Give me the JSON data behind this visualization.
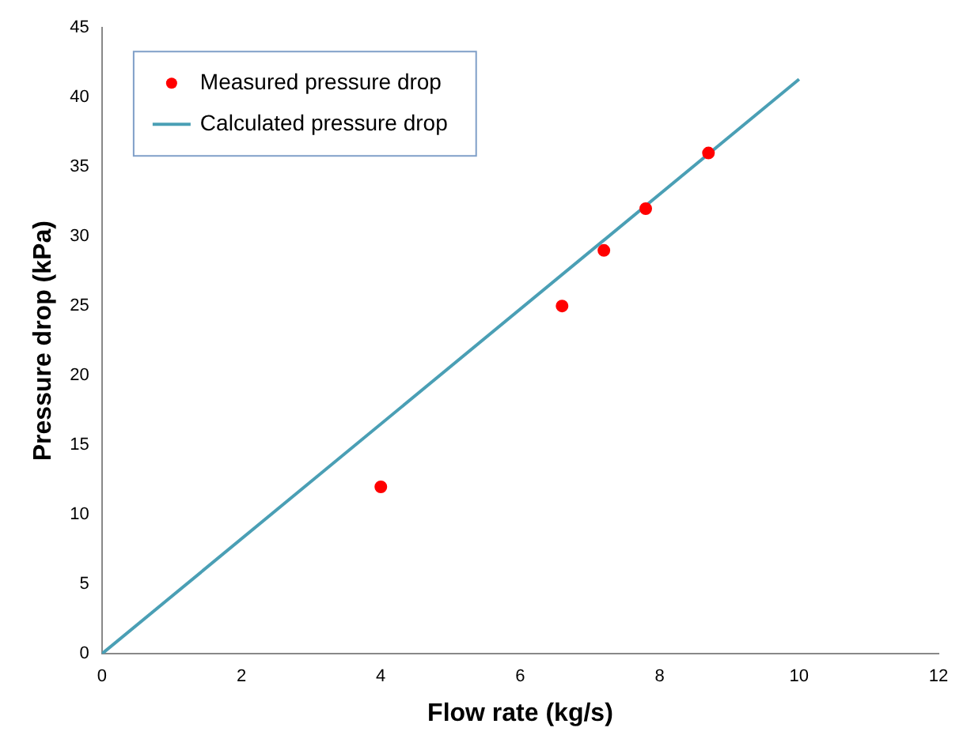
{
  "chart_data": {
    "type": "scatter",
    "xlabel": "Flow rate (kg/s)",
    "ylabel": "Pressure drop (kPa)",
    "xlim": [
      0,
      12
    ],
    "xticks": [
      0,
      2,
      4,
      6,
      8,
      10,
      12
    ],
    "ylim": [
      0,
      45
    ],
    "yticks": [
      0,
      5,
      10,
      15,
      20,
      25,
      30,
      35,
      40,
      45
    ],
    "grid": false,
    "legend": "top left",
    "series": [
      {
        "name": "Measured pressure drop",
        "type": "scatter",
        "marker": "circle",
        "color": "#ff0000",
        "x": [
          4,
          6.6,
          7.2,
          7.8,
          8.7
        ],
        "values": [
          12,
          25,
          29,
          32,
          36
        ]
      },
      {
        "name": "Calculated pressure drop",
        "type": "line",
        "marker": "none",
        "line_style": "solid",
        "color": "#4a9fb5",
        "x": [
          0,
          10
        ],
        "values": [
          0,
          41.3
        ]
      }
    ]
  }
}
